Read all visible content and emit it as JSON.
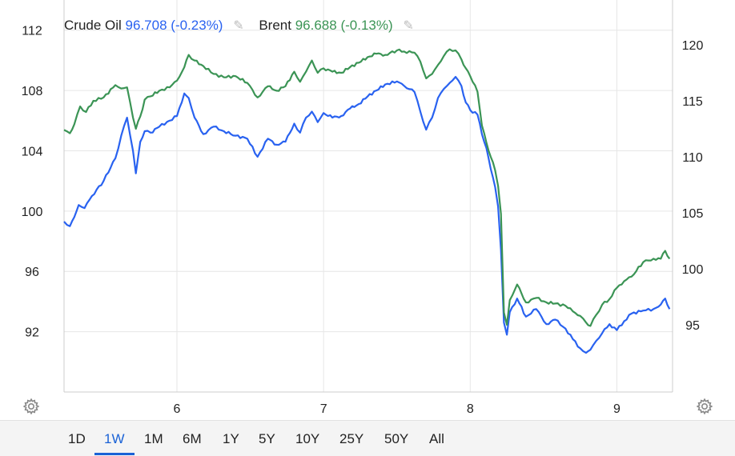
{
  "legend": {
    "crude": {
      "name": "Crude Oil",
      "value": "96.708",
      "change": "(-0.23%)"
    },
    "brent": {
      "name": "Brent",
      "value": "96.688",
      "change": "(-0.13%)"
    }
  },
  "colors": {
    "crude": "#2962f0",
    "brent": "#3b9455",
    "grid": "#e6e6e6",
    "axis": "#cccccc",
    "active": "#1a62d6"
  },
  "icons": {
    "edit": "pencil-icon",
    "settings": "gear-icon"
  },
  "range_buttons": [
    {
      "label": "1D",
      "active": false
    },
    {
      "label": "1W",
      "active": true
    },
    {
      "label": "1M",
      "active": false
    },
    {
      "label": "6M",
      "active": false
    },
    {
      "label": "1Y",
      "active": false
    },
    {
      "label": "5Y",
      "active": false
    },
    {
      "label": "10Y",
      "active": false
    },
    {
      "label": "25Y",
      "active": false
    },
    {
      "label": "50Y",
      "active": false
    },
    {
      "label": "All",
      "active": false
    }
  ],
  "chart_data": {
    "type": "line",
    "x_axis": {
      "range": [
        5.23,
        9.38
      ],
      "ticks": [
        6,
        7,
        8,
        9
      ],
      "tick_labels": [
        "6",
        "7",
        "8",
        "9"
      ]
    },
    "y_left": {
      "range": [
        88.0,
        114.0
      ],
      "ticks": [
        92,
        96,
        100,
        104,
        108,
        112
      ],
      "tick_labels": [
        "92",
        "96",
        "100",
        "104",
        "108",
        "112"
      ]
    },
    "y_right": {
      "range": [
        89.0,
        124.0
      ],
      "ticks": [
        95,
        100,
        105,
        110,
        115,
        120
      ],
      "tick_labels": [
        "95",
        "100",
        "105",
        "110",
        "115",
        "120"
      ]
    },
    "grid": true,
    "series": [
      {
        "name": "Crude Oil",
        "axis": "left",
        "x": [
          5.23,
          5.27,
          5.3,
          5.33,
          5.37,
          5.42,
          5.5,
          5.58,
          5.62,
          5.66,
          5.7,
          5.72,
          5.75,
          5.78,
          5.82,
          5.88,
          5.95,
          6.0,
          6.05,
          6.08,
          6.12,
          6.18,
          6.25,
          6.32,
          6.4,
          6.48,
          6.55,
          6.62,
          6.68,
          6.74,
          6.8,
          6.84,
          6.88,
          6.92,
          6.96,
          7.0,
          7.06,
          7.12,
          7.18,
          7.24,
          7.3,
          7.36,
          7.42,
          7.5,
          7.55,
          7.62,
          7.66,
          7.7,
          7.74,
          7.78,
          7.82,
          7.86,
          7.9,
          7.94,
          7.97,
          8.0,
          8.05,
          8.08,
          8.11,
          8.14,
          8.17,
          8.19,
          8.21,
          8.23,
          8.25,
          8.27,
          8.32,
          8.38,
          8.45,
          8.52,
          8.58,
          8.65,
          8.7,
          8.75,
          8.79,
          8.82,
          8.86,
          8.9,
          8.95,
          9.0,
          9.05,
          9.1,
          9.18,
          9.25,
          9.3,
          9.33,
          9.36
        ],
        "y": [
          99.3,
          99.0,
          99.6,
          100.4,
          100.2,
          101.0,
          102.0,
          103.5,
          105.0,
          106.2,
          104.0,
          102.5,
          104.6,
          105.3,
          105.2,
          105.6,
          106.0,
          106.3,
          107.8,
          107.5,
          106.2,
          105.1,
          105.6,
          105.3,
          105.0,
          104.8,
          103.6,
          104.8,
          104.4,
          104.6,
          105.8,
          105.2,
          106.2,
          106.6,
          105.9,
          106.5,
          106.2,
          106.3,
          106.8,
          107.1,
          107.6,
          108.0,
          108.4,
          108.6,
          108.3,
          107.9,
          106.6,
          105.4,
          106.2,
          107.5,
          108.1,
          108.5,
          108.9,
          108.3,
          107.2,
          106.7,
          106.4,
          105.1,
          104.2,
          102.8,
          101.6,
          100.3,
          97.4,
          92.6,
          91.8,
          93.3,
          94.2,
          93.0,
          93.5,
          92.5,
          92.8,
          92.2,
          91.5,
          90.9,
          90.6,
          90.8,
          91.4,
          91.9,
          92.5,
          92.1,
          92.7,
          93.2,
          93.4,
          93.5,
          93.8,
          94.2,
          93.5
        ]
      },
      {
        "name": "Brent",
        "axis": "right",
        "x": [
          5.23,
          5.27,
          5.3,
          5.34,
          5.38,
          5.43,
          5.5,
          5.58,
          5.62,
          5.66,
          5.7,
          5.72,
          5.75,
          5.78,
          5.82,
          5.88,
          5.95,
          6.0,
          6.05,
          6.08,
          6.12,
          6.18,
          6.25,
          6.32,
          6.4,
          6.48,
          6.55,
          6.62,
          6.68,
          6.74,
          6.8,
          6.84,
          6.88,
          6.92,
          6.96,
          7.0,
          7.06,
          7.12,
          7.18,
          7.24,
          7.3,
          7.36,
          7.42,
          7.5,
          7.55,
          7.62,
          7.66,
          7.7,
          7.74,
          7.78,
          7.82,
          7.86,
          7.9,
          7.94,
          7.97,
          8.0,
          8.05,
          8.08,
          8.11,
          8.14,
          8.17,
          8.19,
          8.21,
          8.23,
          8.25,
          8.27,
          8.32,
          8.38,
          8.45,
          8.52,
          8.58,
          8.65,
          8.7,
          8.75,
          8.79,
          8.82,
          8.86,
          8.9,
          8.95,
          9.0,
          9.05,
          9.1,
          9.18,
          9.25,
          9.3,
          9.33,
          9.36
        ],
        "y": [
          112.4,
          112.1,
          112.9,
          114.5,
          114.0,
          115.0,
          115.3,
          116.4,
          116.1,
          116.2,
          113.5,
          112.5,
          113.6,
          115.1,
          115.4,
          115.9,
          116.2,
          116.8,
          118.0,
          119.1,
          118.6,
          118.1,
          117.4,
          117.1,
          117.2,
          116.6,
          115.3,
          116.3,
          115.9,
          116.3,
          117.6,
          116.7,
          117.6,
          118.6,
          117.5,
          117.9,
          117.6,
          117.5,
          118.0,
          118.4,
          118.9,
          119.2,
          119.1,
          119.5,
          119.4,
          119.3,
          118.5,
          117.0,
          117.4,
          118.2,
          119.0,
          119.6,
          119.5,
          118.7,
          117.9,
          117.2,
          115.8,
          112.8,
          111.3,
          110.0,
          108.8,
          107.4,
          104.9,
          96.1,
          95.0,
          97.2,
          98.6,
          97.0,
          97.4,
          97.0,
          96.9,
          96.7,
          96.2,
          95.8,
          95.2,
          94.9,
          95.9,
          96.8,
          97.3,
          98.3,
          98.9,
          99.3,
          100.6,
          100.9,
          100.9,
          101.6,
          100.9
        ]
      }
    ]
  }
}
